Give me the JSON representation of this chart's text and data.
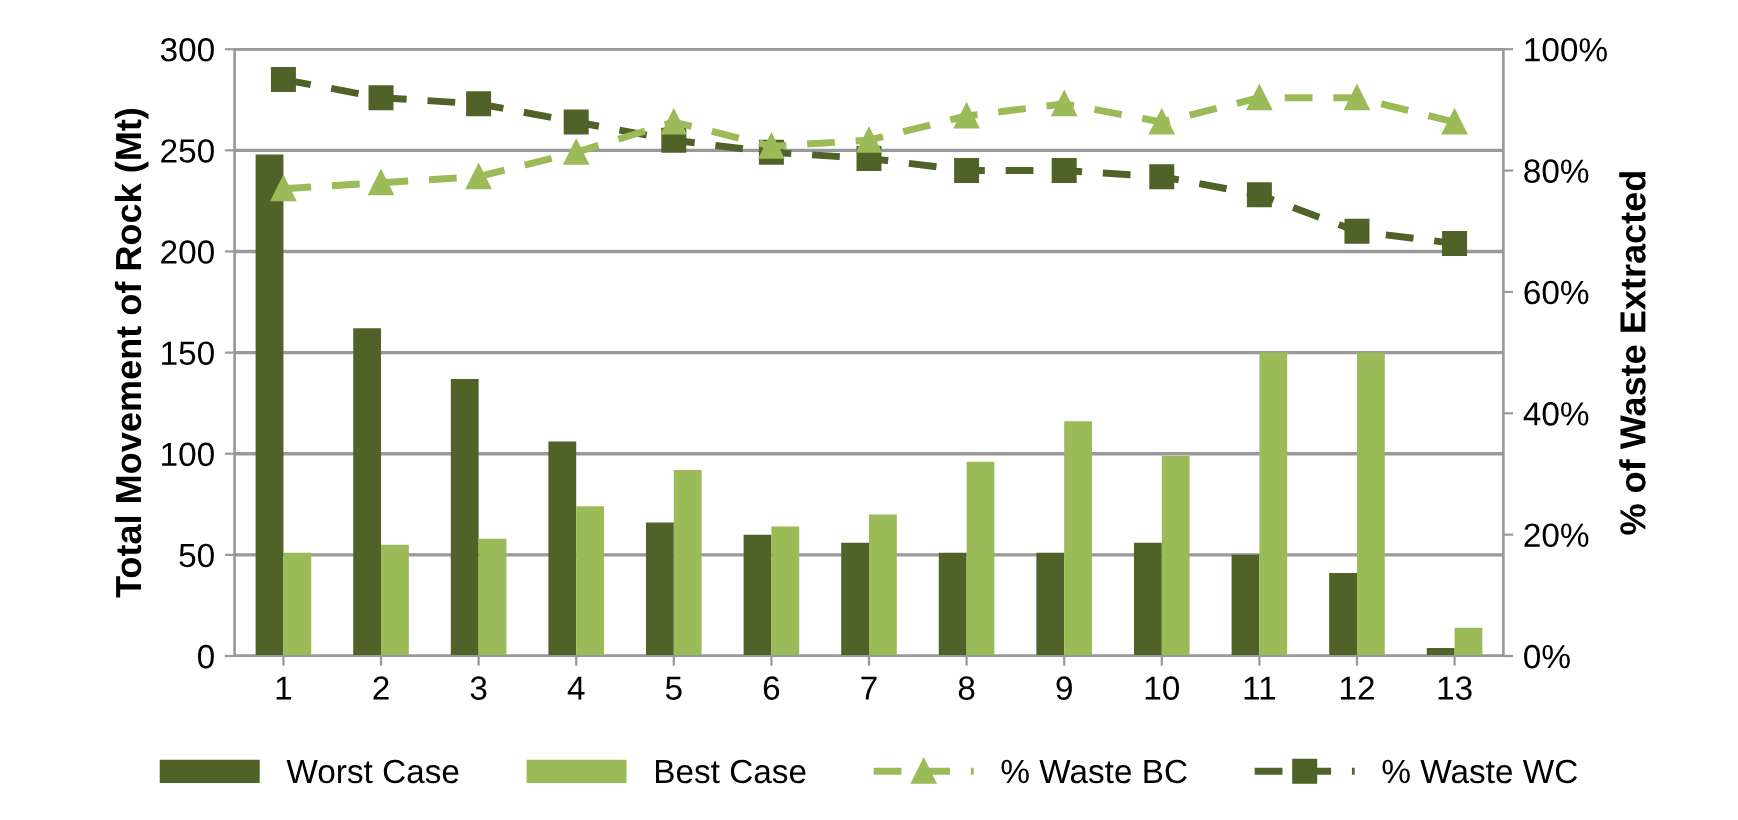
{
  "chart_data": {
    "type": "bar",
    "categories": [
      "1",
      "2",
      "3",
      "4",
      "5",
      "6",
      "7",
      "8",
      "9",
      "10",
      "11",
      "12",
      "13"
    ],
    "ylabel": "Total Movement of Rock (Mt)",
    "y2label": "% of Waste Extracted",
    "ylim": [
      0,
      300
    ],
    "yticks": [
      0,
      50,
      100,
      150,
      200,
      250,
      300
    ],
    "y2lim": [
      0,
      100
    ],
    "y2ticks": [
      {
        "value": 0,
        "label": "0%"
      },
      {
        "value": 20,
        "label": "20%"
      },
      {
        "value": 40,
        "label": "40%"
      },
      {
        "value": 60,
        "label": "60%"
      },
      {
        "value": 80,
        "label": "80%"
      },
      {
        "value": 100,
        "label": "100%"
      }
    ],
    "grid": "y",
    "legend": "bottom",
    "series": [
      {
        "name": "Worst Case",
        "color": "#4f6228",
        "values": [
          248,
          162,
          137,
          106,
          66,
          60,
          56,
          51,
          51,
          56,
          50,
          41,
          4
        ]
      },
      {
        "name": "Best Case",
        "color": "#9bbb59",
        "values": [
          51,
          55,
          58,
          74,
          92,
          64,
          70,
          96,
          116,
          99,
          150,
          150,
          14
        ]
      },
      {
        "name": "% Waste BC",
        "type": "line",
        "axis": "y2",
        "color": "#9bbb59",
        "marker": "triangle",
        "line_style": "dashed",
        "values": [
          77,
          78,
          79,
          83,
          88,
          84,
          85,
          89,
          91,
          88,
          92,
          92,
          88
        ]
      },
      {
        "name": "% Waste WC",
        "type": "line",
        "axis": "y2",
        "color": "#4f6228",
        "marker": "square",
        "line_style": "dashed",
        "values": [
          95,
          92,
          91,
          88,
          85,
          83,
          82,
          80,
          80,
          79,
          76,
          70,
          68
        ]
      }
    ]
  }
}
